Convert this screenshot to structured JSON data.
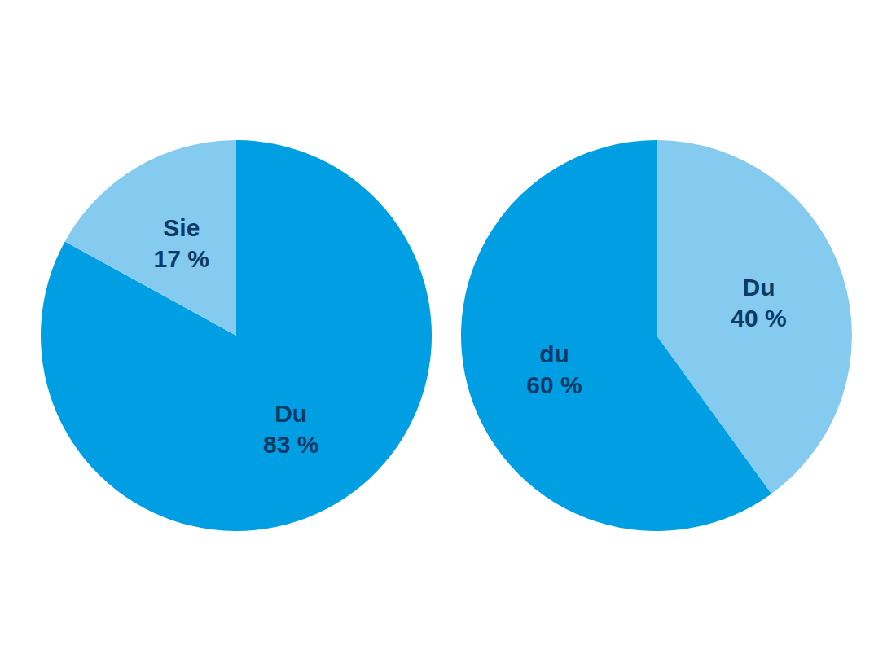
{
  "chart_data": [
    {
      "type": "pie",
      "categories": [
        "Du",
        "Sie"
      ],
      "values": [
        83,
        17
      ],
      "value_labels": [
        "83 %",
        "17 %"
      ],
      "colors": [
        "#009fe3",
        "#85cbf0"
      ],
      "data_labels": true
    },
    {
      "type": "pie",
      "categories": [
        "Du",
        "du"
      ],
      "values": [
        40,
        60
      ],
      "value_labels": [
        "40 %",
        "60 %"
      ],
      "colors": [
        "#85cbf0",
        "#009fe3"
      ],
      "data_labels": true
    }
  ]
}
